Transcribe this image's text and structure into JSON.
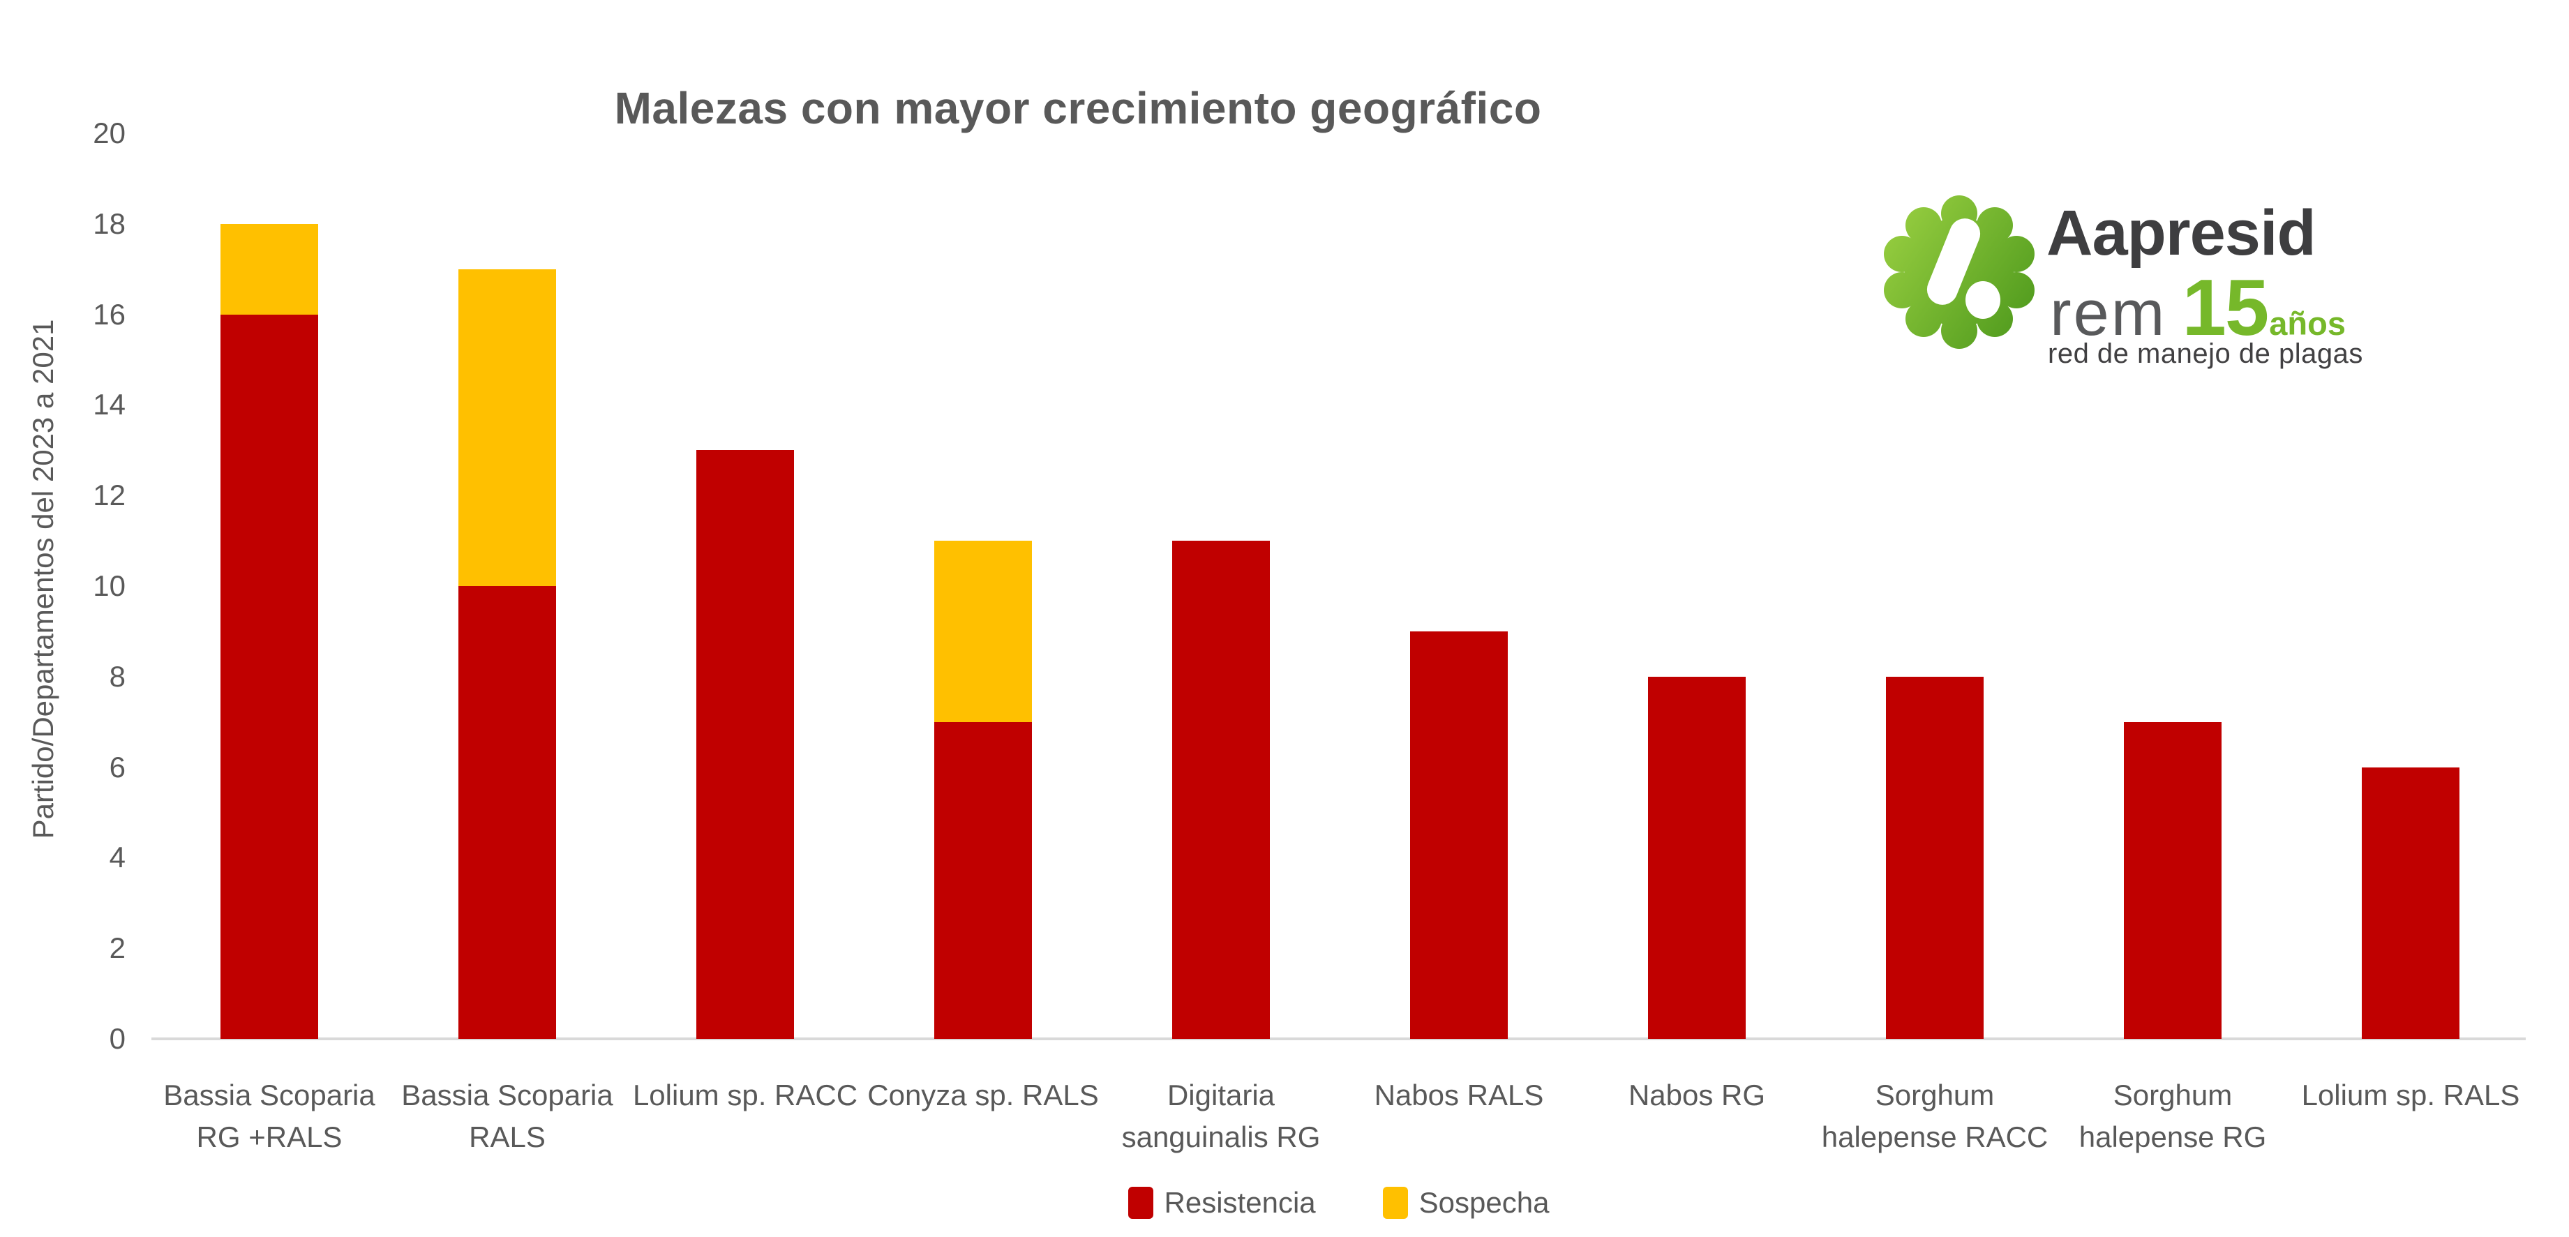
{
  "chart_data": {
    "type": "bar",
    "stacked": true,
    "title": "Malezas con mayor crecimiento geográfico",
    "xlabel": "",
    "ylabel": "Partido/Departamentos del 2023 a 2021",
    "ylim": [
      0,
      20
    ],
    "ytick_step": 2,
    "grid": false,
    "legend_position": "bottom",
    "categories": [
      "Bassia Scoparia RG +RALS",
      "Bassia Scoparia RALS",
      "Lolium sp. RACC",
      "Conyza sp. RALS",
      "Digitaria sanguinalis RG",
      "Nabos RALS",
      "Nabos RG",
      "Sorghum halepense RACC",
      "Sorghum halepense RG",
      "Lolium sp. RALS"
    ],
    "series": [
      {
        "name": "Resistencia",
        "color": "#C00000",
        "values": [
          16,
          10,
          13,
          7,
          11,
          9,
          8,
          8,
          7,
          6
        ]
      },
      {
        "name": "Sospecha",
        "color": "#FFC000",
        "values": [
          2,
          7,
          0,
          4,
          0,
          0,
          0,
          0,
          0,
          0
        ]
      }
    ],
    "totals": [
      18,
      17,
      13,
      11,
      11,
      9,
      8,
      8,
      7,
      6
    ]
  },
  "colors": {
    "resistencia": "#C00000",
    "sospecha": "#FFC000",
    "axis_line": "#D9D9D9",
    "text": "#595959",
    "logo_green": "#76B82A",
    "logo_dark": "#3E3E40"
  },
  "logo": {
    "brand": "Aapresid",
    "sub_brand": "rem",
    "years_number": "15",
    "years_word": "años",
    "tagline": "red de manejo de plagas"
  }
}
